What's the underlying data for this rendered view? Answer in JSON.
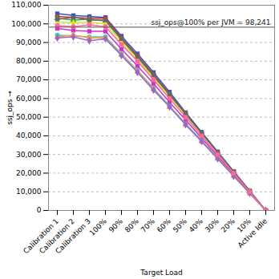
{
  "chart_data": {
    "type": "line",
    "x_label": "Target Load",
    "y_label": "ssj_ops",
    "categories": [
      "Calibration 1",
      "Calibration 2",
      "Calibration 3",
      "100%",
      "90%",
      "80%",
      "70%",
      "60%",
      "50%",
      "40%",
      "30%",
      "20%",
      "10%",
      "Active Idle"
    ],
    "series": [
      {
        "color": "#3355cc",
        "marker": "square",
        "values": [
          105500,
          104500,
          104000,
          103500,
          93500,
          84000,
          74000,
          63500,
          52500,
          42000,
          31500,
          21000,
          10500,
          0
        ]
      },
      {
        "color": "#cc3333",
        "marker": "circle",
        "values": [
          104000,
          103500,
          103000,
          103000,
          92500,
          83000,
          73000,
          62500,
          52000,
          41500,
          31000,
          20800,
          10300,
          0
        ]
      },
      {
        "color": "#33aa33",
        "marker": "triangle",
        "values": [
          103000,
          102000,
          102500,
          101500,
          91500,
          82000,
          72000,
          62000,
          51500,
          41000,
          30800,
          20500,
          10200,
          0
        ]
      },
      {
        "color": "#dddd33",
        "marker": "diamond",
        "values": [
          101000,
          100500,
          101000,
          100000,
          90500,
          81000,
          71000,
          61000,
          50500,
          40500,
          30300,
          20200,
          10100,
          0
        ]
      },
      {
        "color": "#cc33cc",
        "marker": "square",
        "values": [
          97500,
          96500,
          96000,
          96000,
          86500,
          77500,
          68000,
          58000,
          48500,
          38800,
          29000,
          19400,
          9700,
          0
        ]
      },
      {
        "color": "#33cccc",
        "marker": "circle",
        "values": [
          94000,
          93500,
          93000,
          93000,
          84000,
          75000,
          65500,
          56000,
          46500,
          37400,
          28000,
          18700,
          9300,
          0
        ]
      },
      {
        "color": "#ff9933",
        "marker": "triangle",
        "values": [
          93000,
          94000,
          92500,
          92500,
          83500,
          74500,
          65000,
          55500,
          46000,
          37000,
          27800,
          18500,
          9200,
          0
        ]
      },
      {
        "color": "#9966cc",
        "marker": "diamond",
        "values": [
          92500,
          93000,
          91000,
          92000,
          83000,
          74000,
          64500,
          55500,
          46000,
          37000,
          27700,
          18400,
          9200,
          0
        ]
      },
      {
        "color": "#666666",
        "marker": "square",
        "values": [
          102500,
          103500,
          102000,
          102000,
          92000,
          82500,
          72500,
          62000,
          52000,
          41500,
          31200,
          20700,
          10400,
          0
        ]
      },
      {
        "color": "#ff6699",
        "marker": "circle",
        "values": [
          99000,
          98500,
          99500,
          98500,
          89000,
          80000,
          70000,
          60000,
          50000,
          40000,
          30000,
          20000,
          10000,
          0
        ]
      }
    ],
    "reference_line": {
      "value": 98241,
      "label": "ssj_ops@100% per JVM = 98,241"
    },
    "ylim": [
      0,
      110000
    ],
    "yticks": [
      0,
      {
        "value": 10000,
        "label": "10,000"
      },
      {
        "value": 20000,
        "label": "20,000"
      },
      {
        "value": 30000,
        "label": "30,000"
      },
      {
        "value": 40000,
        "label": "40,000"
      },
      {
        "value": 50000,
        "label": "50,000"
      },
      {
        "value": 60000,
        "label": "60,000"
      },
      {
        "value": 70000,
        "label": "70,000"
      },
      {
        "value": 80000,
        "label": "80,000"
      },
      {
        "value": 90000,
        "label": "90,000"
      },
      {
        "value": 100000,
        "label": "100,000"
      },
      {
        "value": 110000,
        "label": "110,000"
      }
    ],
    "grid": true
  }
}
